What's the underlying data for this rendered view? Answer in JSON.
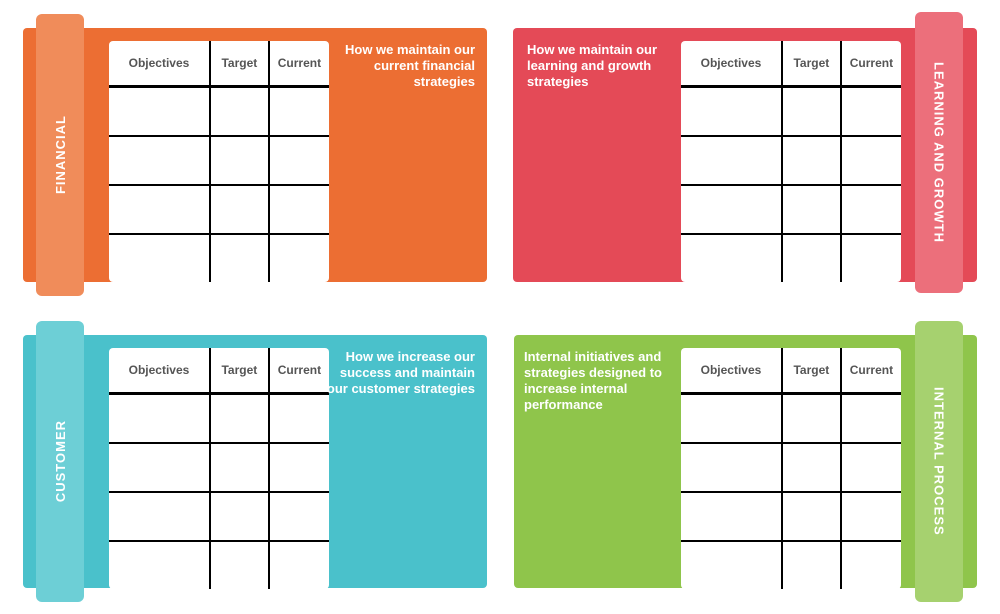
{
  "columns": [
    "Objectives",
    "Target",
    "Current"
  ],
  "panels": [
    {
      "label": "FINANCIAL",
      "description": "How we maintain our current financial strategies",
      "color": "#EC6E33",
      "tab_color": "#F08C5A"
    },
    {
      "label": "LEARNING AND GROWTH",
      "description": "How we maintain our learning and growth strategies",
      "color": "#E44A57",
      "tab_color": "#EC6F7B"
    },
    {
      "label": "CUSTOMER",
      "description": "How we increase our success and maintain our customer strategies",
      "color": "#4AC1CB",
      "tab_color": "#6DCFD6"
    },
    {
      "label": "INTERNAL PROCESS",
      "description": "Internal initiatives and strategies designed to increase internal performance",
      "color": "#8FC54B",
      "tab_color": "#A6D16F"
    }
  ]
}
